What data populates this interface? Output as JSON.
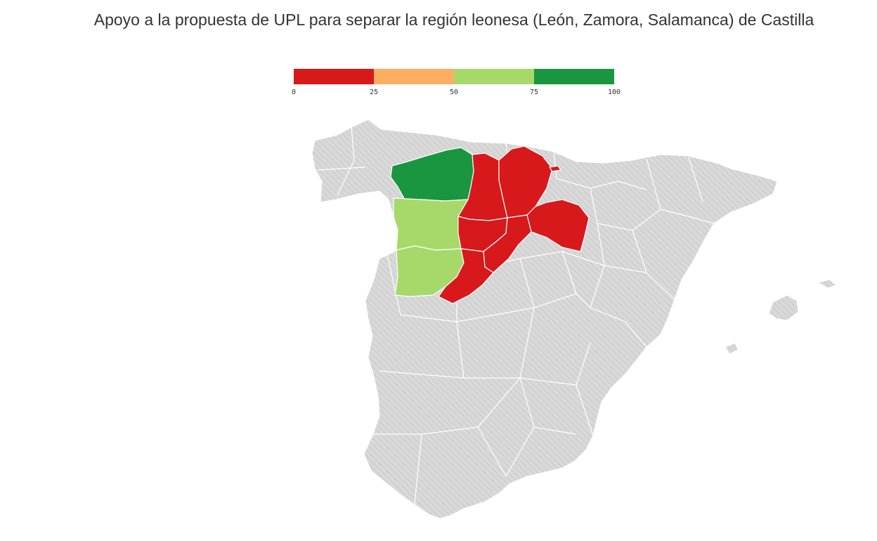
{
  "title": "Apoyo a la propuesta de UPL para separar la región leonesa (León, Zamora, Salamanca) de Castilla",
  "legend": {
    "ticks": [
      "0",
      "25",
      "50",
      "75",
      "100"
    ],
    "bins": [
      {
        "from": 0,
        "to": 25,
        "color": "#d7191c"
      },
      {
        "from": 25,
        "to": 50,
        "color": "#fdae61"
      },
      {
        "from": 50,
        "to": 75,
        "color": "#a6d96a"
      },
      {
        "from": 75,
        "to": 100,
        "color": "#1a9641"
      }
    ]
  },
  "colors": {
    "no_data": "#d9d9d9",
    "hatch": "#c4c4c4",
    "border": "#ffffff",
    "red": "#d7191c",
    "light_green": "#a6d96a",
    "dark_green": "#1a9641"
  },
  "map_data": {
    "highlighted_regions": [
      {
        "name": "León",
        "support_range": "75-100",
        "color": "#1a9641"
      },
      {
        "name": "Zamora",
        "support_range": "50-75",
        "color": "#a6d96a"
      },
      {
        "name": "Salamanca",
        "support_range": "50-75",
        "color": "#a6d96a"
      },
      {
        "name": "Palencia",
        "support_range": "0-25",
        "color": "#d7191c"
      },
      {
        "name": "Burgos",
        "support_range": "0-25",
        "color": "#d7191c"
      },
      {
        "name": "Valladolid",
        "support_range": "0-25",
        "color": "#d7191c"
      },
      {
        "name": "Soria",
        "support_range": "0-25",
        "color": "#d7191c"
      },
      {
        "name": "Segovia",
        "support_range": "0-25",
        "color": "#d7191c"
      },
      {
        "name": "Ávila",
        "support_range": "0-25",
        "color": "#d7191c"
      }
    ]
  }
}
